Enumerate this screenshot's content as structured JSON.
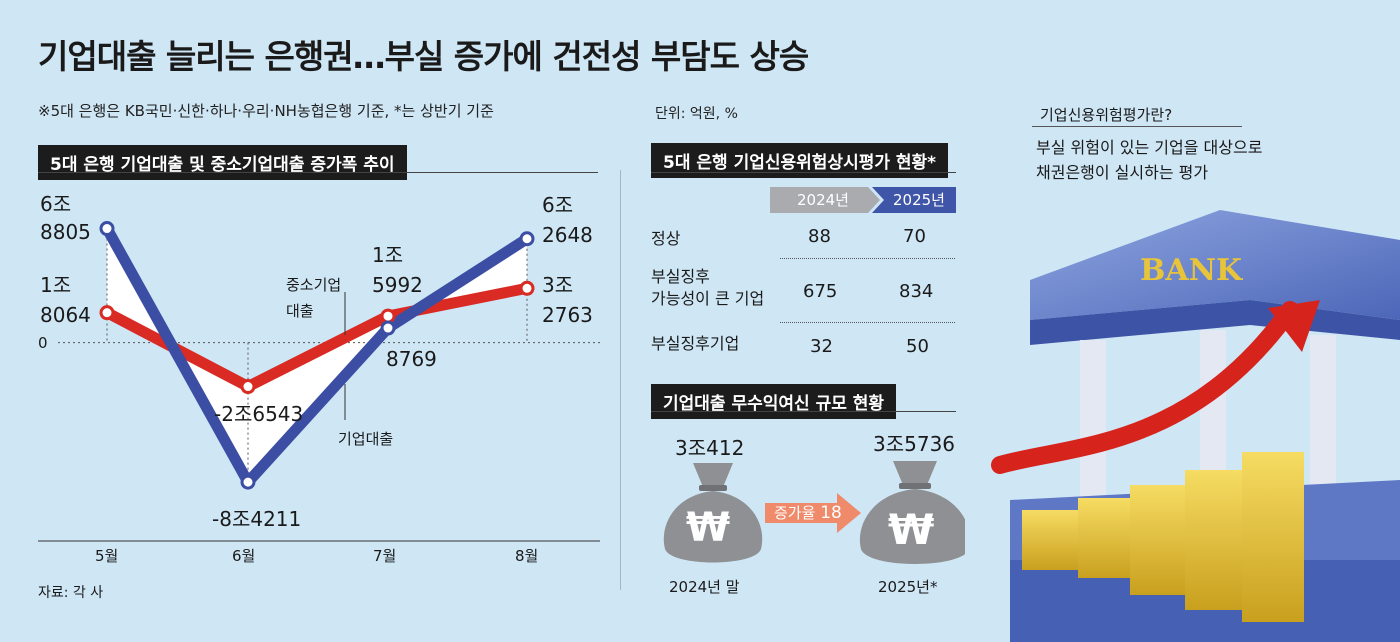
{
  "header": {
    "title": "기업대출 늘리는 은행권…부실 증가에 건전성 부담도 상승",
    "note": "※5대 은행은 KB국민·신한·하나·우리·NH농협은행 기준, *는 상반기 기준",
    "unit": "단위: 억원, %",
    "source": "자료: 각 사"
  },
  "chart_data": {
    "type": "line",
    "title": "5대 은행 기업대출 및 중소기업대출 증가폭 추이",
    "categories": [
      "5월",
      "6월",
      "7월",
      "8월"
    ],
    "series": [
      {
        "name": "기업대출",
        "values": [
          68805,
          -84211,
          8769,
          62648
        ],
        "color": "#3b4ea3",
        "labels": [
          [
            "6조",
            "8805"
          ],
          [
            "-8조4211"
          ],
          [
            "8769"
          ],
          [
            "6조",
            "2648"
          ]
        ]
      },
      {
        "name": "중소기업대출",
        "values": [
          18064,
          -26543,
          15992,
          32763
        ],
        "color": "#d92b23",
        "labels": [
          [
            "1조",
            "8064"
          ],
          [
            "-2조6543"
          ],
          [
            "1조",
            "5992"
          ],
          [
            "3조",
            "2763"
          ]
        ]
      }
    ],
    "series_labels": {
      "sme": [
        "중소기업",
        "대출"
      ],
      "corporate": "기업대출"
    },
    "zero_label": "0",
    "ylim": [
      -95000,
      80000
    ]
  },
  "table": {
    "title": "5대 은행 기업신용위험상시평가 현황*",
    "years": [
      "2024년",
      "2025년"
    ],
    "rows": [
      {
        "label": [
          "정상"
        ],
        "v2024": "88",
        "v2025": "70"
      },
      {
        "label": [
          "부실징후",
          "가능성이 큰 기업"
        ],
        "v2024": "675",
        "v2025": "834"
      },
      {
        "label": [
          "부실징후기업"
        ],
        "v2024": "32",
        "v2025": "50"
      }
    ]
  },
  "loans": {
    "title": "기업대출 무수익여신 규모 현황",
    "before_value": "3조412",
    "before_label": "2024년 말",
    "after_value": "3조5736",
    "after_label": "2025년*",
    "growth_label": "증가율",
    "growth_value": "18",
    "currency_symbol": "₩"
  },
  "definition": {
    "title": "기업신용위험평가란?",
    "body": [
      "부실 위험이 있는 기업을 대상으로",
      "채권은행이 실시하는 평가"
    ]
  },
  "illustration": {
    "sign": "BANK"
  }
}
